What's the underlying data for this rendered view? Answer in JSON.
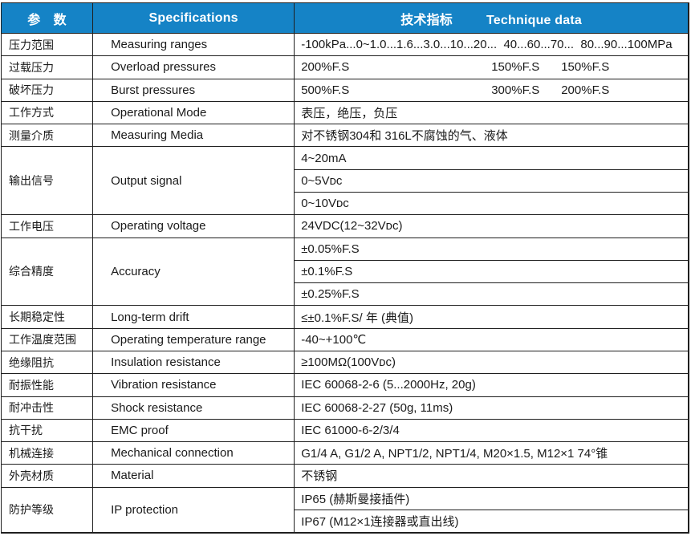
{
  "colors": {
    "header_bg": "#1583c6",
    "header_text": "#ffffff",
    "border": "#1f1f1f",
    "body_text": "#1a1a1a",
    "body_bg": "#ffffff"
  },
  "header": {
    "param": "参　数",
    "spec": "Specifications",
    "tech_zh": "技术指标",
    "tech_en": "Technique data"
  },
  "rows": [
    {
      "param": "压力范围",
      "spec": "Measuring ranges",
      "value": "-100kPa...0~1.0...1.6...3.0...10...20...  40...60...70...  80...90...100MPa"
    },
    {
      "param": "过载压力",
      "spec": "Overload pressures",
      "v1": "200%F.S",
      "v2": "150%F.S",
      "v3": "150%F.S"
    },
    {
      "param": "破坏压力",
      "spec": "Burst pressures",
      "v1": "500%F.S",
      "v2": "300%F.S",
      "v3": "200%F.S"
    },
    {
      "param": "工作方式",
      "spec": "Operational Mode",
      "value": "表压，绝压，负压"
    },
    {
      "param": "测量介质",
      "spec": "Measuring Media",
      "value": "对不锈钢304和 316L不腐蚀的气、液体"
    },
    {
      "param": "输出信号",
      "spec": "Output signal",
      "values": [
        "4~20mA",
        "0~5Vᴅᴄ",
        "0~10Vᴅᴄ"
      ]
    },
    {
      "param": "工作电压",
      "spec": "Operating voltage",
      "value": "24VDC(12~32Vᴅᴄ)"
    },
    {
      "param": "综合精度",
      "spec": "Accuracy",
      "values": [
        "±0.05%F.S",
        "±0.1%F.S",
        "±0.25%F.S"
      ]
    },
    {
      "param": "长期稳定性",
      "spec": "Long-term drift",
      "value": "≤±0.1%F.S/ 年 (典值)"
    },
    {
      "param": "工作温度范围",
      "spec": "Operating temperature range",
      "value": "-40~+100℃"
    },
    {
      "param": "绝缘阻抗",
      "spec": "Insulation resistance",
      "value": "≥100MΩ(100Vᴅᴄ)"
    },
    {
      "param": "耐振性能",
      "spec": "Vibration resistance",
      "value": "IEC 60068-2-6 (5...2000Hz, 20g)"
    },
    {
      "param": "耐冲击性",
      "spec": "Shock resistance",
      "value": "IEC 60068-2-27 (50g, 11ms)"
    },
    {
      "param": "抗干扰",
      "spec": "EMC proof",
      "value": "IEC 61000-6-2/3/4"
    },
    {
      "param": "机械连接",
      "spec": "Mechanical connection",
      "value": "G1/4 A, G1/2 A, NPT1/2, NPT1/4, M20×1.5, M12×1 74°锥"
    },
    {
      "param": "外壳材质",
      "spec": "Material",
      "value": "不锈钢"
    },
    {
      "param": "防护等级",
      "spec": "IP protection",
      "values": [
        "IP65 (赫斯曼接插件)",
        "IP67 (M12×1连接器或直出线)"
      ]
    }
  ]
}
